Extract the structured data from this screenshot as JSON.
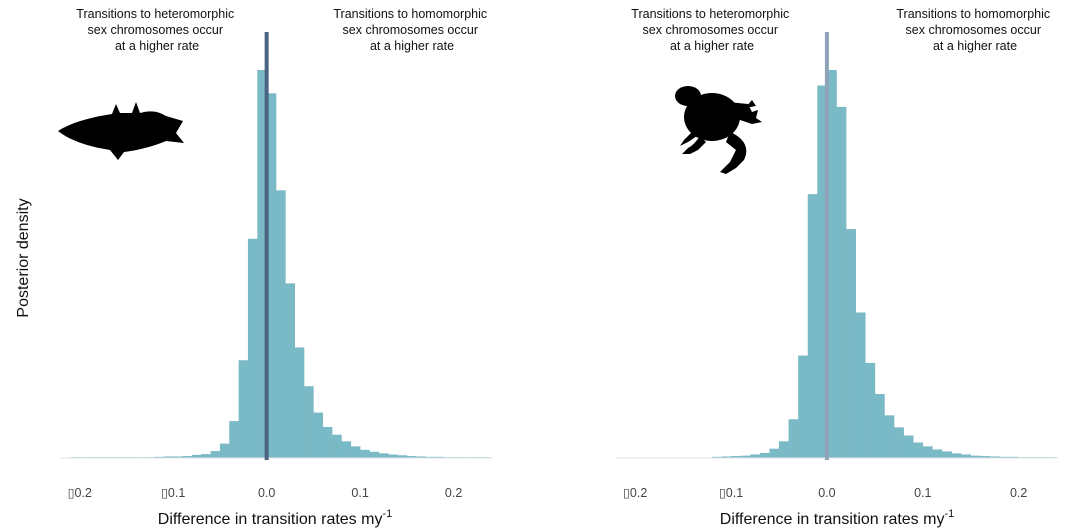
{
  "ylabel": "Posterior density",
  "colors": {
    "bar": "#7ab9c6",
    "zero_line_left": "#4c6484",
    "zero_line_right": "#8fa3b8",
    "text": "#111111"
  },
  "chart_data": [
    {
      "type": "bar",
      "icon": "fish-silhouette-icon",
      "annotation_left": [
        "Transitions to heteromorphic",
        "sex chromosomes occur",
        "at a higher rate"
      ],
      "annotation_right": [
        "Transitions to homomorphic",
        "sex chromosomes occur",
        "at a higher rate"
      ],
      "xlabel_main": "Difference in transition rates my",
      "xlabel_sup": "-1",
      "ylabel": "Posterior density",
      "xlim": [
        -0.22,
        0.24
      ],
      "ylim": [
        0,
        1
      ],
      "x_ticks": [
        -0.2,
        -0.1,
        0.0,
        0.1,
        0.2
      ],
      "x_tick_labels": [
        "▯0.2",
        "▯0.1",
        "0.0",
        "0.1",
        "0.2"
      ],
      "bin_width": 0.01,
      "bins_start": [
        -0.21,
        -0.2,
        -0.19,
        -0.18,
        -0.17,
        -0.16,
        -0.15,
        -0.14,
        -0.13,
        -0.12,
        -0.11,
        -0.1,
        -0.09,
        -0.08,
        -0.07,
        -0.06,
        -0.05,
        -0.04,
        -0.03,
        -0.02,
        -0.01,
        0.0,
        0.01,
        0.02,
        0.03,
        0.04,
        0.05,
        0.06,
        0.07,
        0.08,
        0.09,
        0.1,
        0.11,
        0.12,
        0.13,
        0.14,
        0.15,
        0.16,
        0.17,
        0.18,
        0.19,
        0.2,
        0.21,
        0.22,
        0.23
      ],
      "values": [
        0.002,
        0.002,
        0.002,
        0.002,
        0.002,
        0.002,
        0.002,
        0.002,
        0.002,
        0.003,
        0.004,
        0.004,
        0.005,
        0.008,
        0.01,
        0.018,
        0.037,
        0.095,
        0.252,
        0.565,
        1.0,
        0.94,
        0.69,
        0.45,
        0.285,
        0.185,
        0.117,
        0.08,
        0.06,
        0.043,
        0.03,
        0.021,
        0.016,
        0.012,
        0.009,
        0.007,
        0.005,
        0.004,
        0.003,
        0.003,
        0.002,
        0.002,
        0.002,
        0.002,
        0.002
      ],
      "zero_line": 0.0
    },
    {
      "type": "bar",
      "icon": "frog-silhouette-icon",
      "annotation_left": [
        "Transitions to heteromorphic",
        "sex chromosomes occur",
        "at a higher rate"
      ],
      "annotation_right": [
        "Transitions to homomorphic",
        "sex chromosomes occur",
        "at a higher rate"
      ],
      "xlabel_main": "Difference in transition rates my",
      "xlabel_sup": "-1",
      "xlim": [
        -0.22,
        0.24
      ],
      "ylim": [
        0,
        1
      ],
      "x_ticks": [
        -0.2,
        -0.1,
        0.0,
        0.1,
        0.2
      ],
      "x_tick_labels": [
        "▯0.2",
        "▯0.1",
        "0.0",
        "0.1",
        "0.2"
      ],
      "bin_width": 0.01,
      "bins_start": [
        -0.12,
        -0.11,
        -0.1,
        -0.09,
        -0.08,
        -0.07,
        -0.06,
        -0.05,
        -0.04,
        -0.03,
        -0.02,
        -0.01,
        0.0,
        0.01,
        0.02,
        0.03,
        0.04,
        0.05,
        0.06,
        0.07,
        0.08,
        0.09,
        0.1,
        0.11,
        0.12,
        0.13,
        0.14,
        0.15,
        0.16,
        0.17,
        0.18,
        0.19,
        0.2,
        0.21,
        0.22,
        0.23
      ],
      "values": [
        0.003,
        0.004,
        0.005,
        0.006,
        0.009,
        0.013,
        0.024,
        0.043,
        0.1,
        0.264,
        0.68,
        0.96,
        1.0,
        0.905,
        0.59,
        0.375,
        0.245,
        0.165,
        0.11,
        0.079,
        0.058,
        0.04,
        0.03,
        0.022,
        0.017,
        0.012,
        0.009,
        0.006,
        0.005,
        0.004,
        0.003,
        0.003,
        0.002,
        0.002,
        0.002,
        0.002
      ],
      "zero_line": 0.0
    }
  ]
}
